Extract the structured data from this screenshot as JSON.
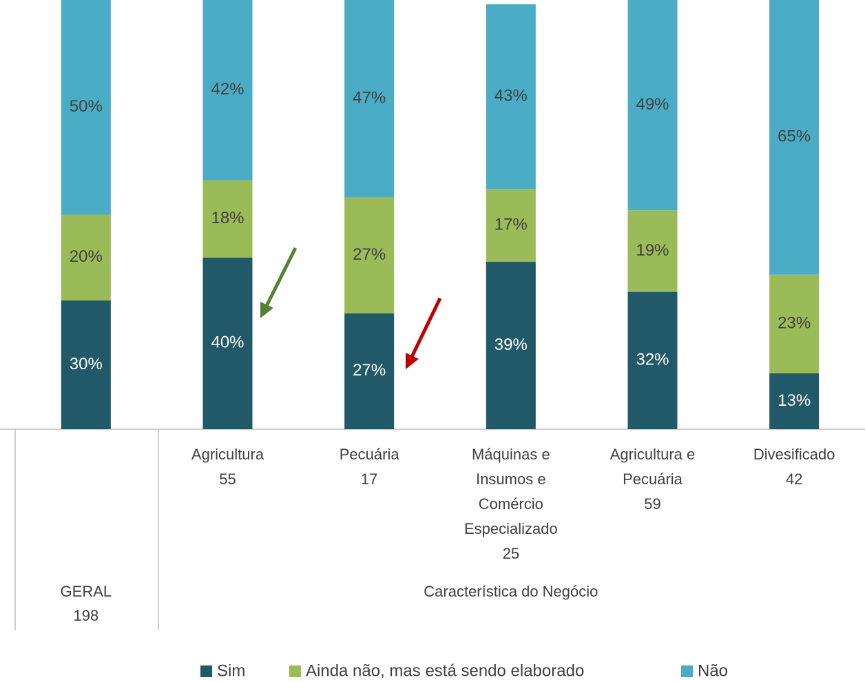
{
  "chart_data": {
    "type": "stacked_bar",
    "categories": [
      null,
      [
        "Agricultura",
        "55"
      ],
      [
        "Pecuária",
        "17"
      ],
      [
        "Máquinas e",
        "Insumos e",
        "Comércio",
        "Especializado",
        "25"
      ],
      [
        "Agricultura e",
        "Pecuária",
        "59"
      ],
      [
        "Divesificado",
        "42"
      ]
    ],
    "groups": [
      {
        "label": [
          "GERAL",
          "198"
        ],
        "size": 1
      },
      {
        "label": [
          "Característica do Negócio"
        ],
        "size": 5
      }
    ],
    "series": [
      {
        "name": "Sim",
        "color": "#215968",
        "values": [
          30,
          40,
          27,
          39,
          32,
          13
        ],
        "value_labels": [
          "30%",
          "40%",
          "27%",
          "39%",
          "32%",
          "13%"
        ]
      },
      {
        "name": "Ainda não, mas está sendo elaborado",
        "color": "#9bbb59",
        "values": [
          20,
          18,
          27,
          17,
          19,
          23
        ],
        "value_labels": [
          "20%",
          "18%",
          "27%",
          "17%",
          "19%",
          "23%"
        ]
      },
      {
        "name": "Não",
        "color": "#4bacc6",
        "values": [
          50,
          42,
          47,
          43,
          49,
          65
        ],
        "value_labels": [
          "50%",
          "42%",
          "47%",
          "43%",
          "49%",
          "65%"
        ]
      }
    ],
    "ylim": [
      0,
      100
    ]
  }
}
